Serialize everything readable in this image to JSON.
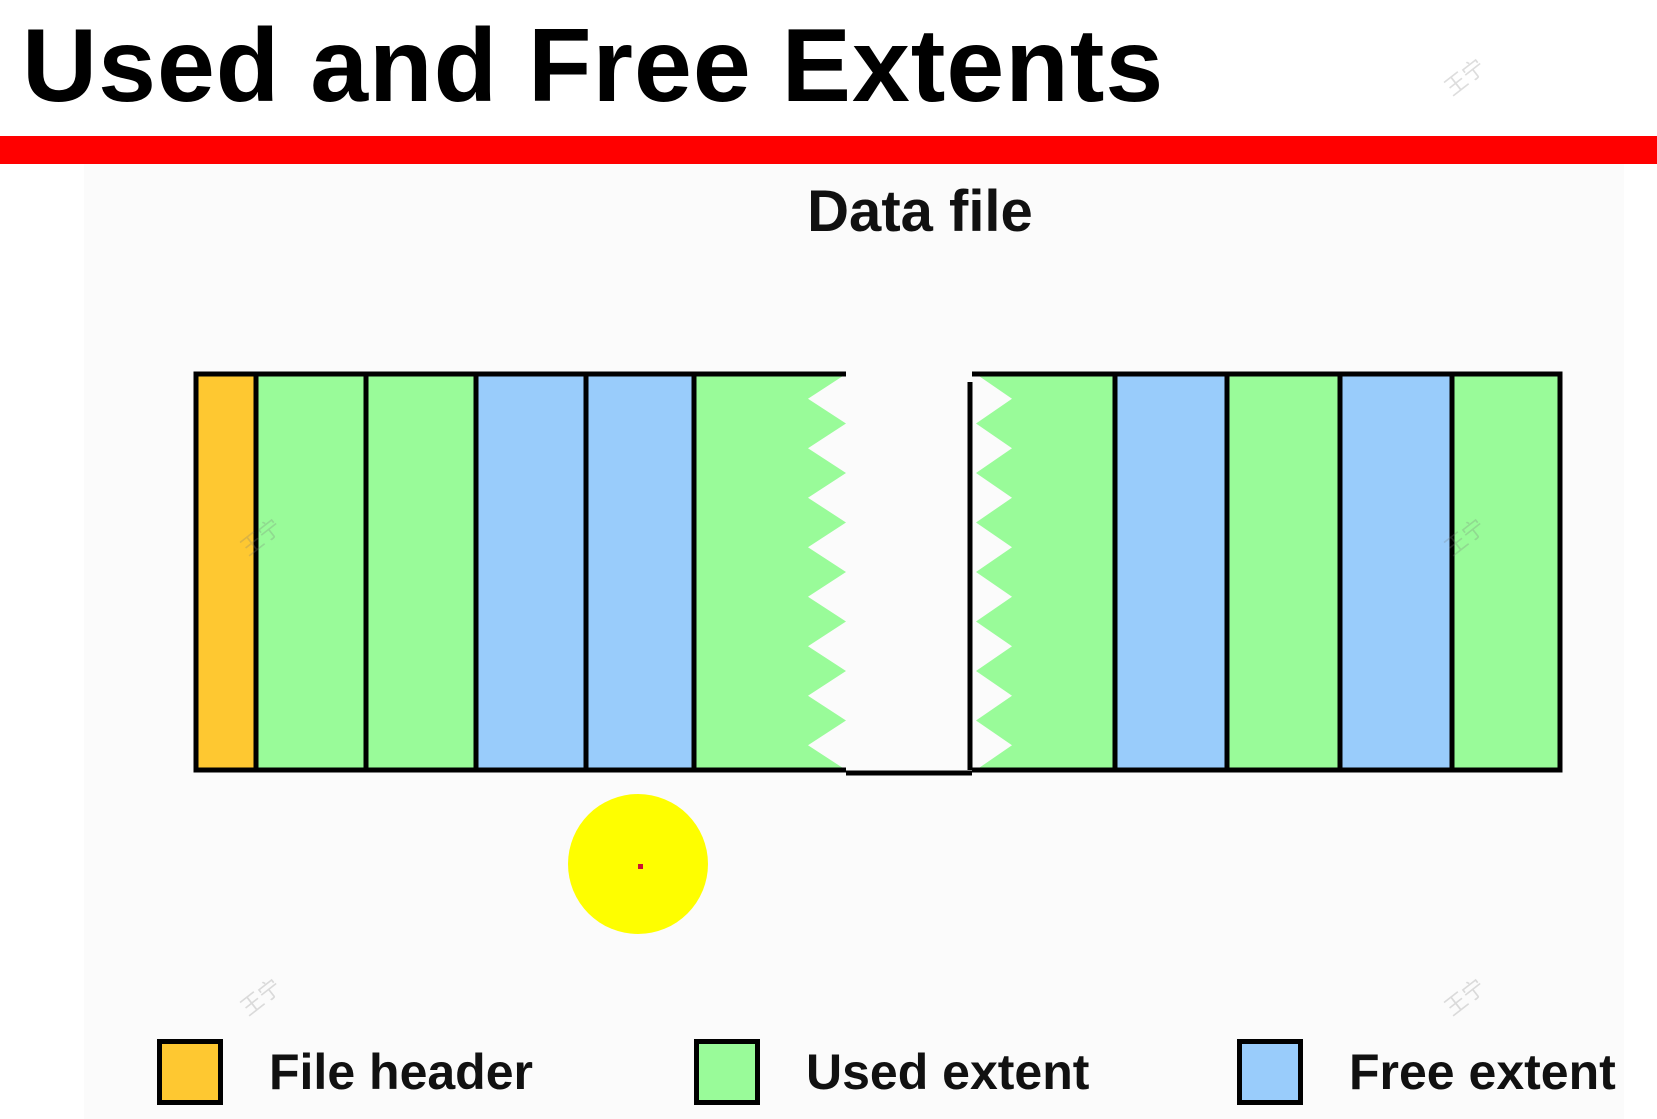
{
  "slide": {
    "title": "Used and Free Extents",
    "caption": "Data file",
    "rule_color": "#ff0000"
  },
  "colors": {
    "file_header": "#fec831",
    "used_extent": "#99fb99",
    "free_extent": "#99ccfb",
    "outline": "#000000",
    "pointer": "#fefe00"
  },
  "legend": [
    {
      "key": "file_header",
      "label": "File header"
    },
    {
      "key": "used_extent",
      "label": "Used extent"
    },
    {
      "key": "free_extent",
      "label": "Free extent"
    }
  ],
  "data_file": {
    "left_segment": [
      "file_header",
      "used_extent",
      "used_extent",
      "free_extent",
      "free_extent",
      "used_extent"
    ],
    "right_segment": [
      "used_extent",
      "free_extent",
      "used_extent",
      "free_extent",
      "used_extent"
    ],
    "gap": "torn break between segments"
  },
  "watermark_text": "王宁"
}
